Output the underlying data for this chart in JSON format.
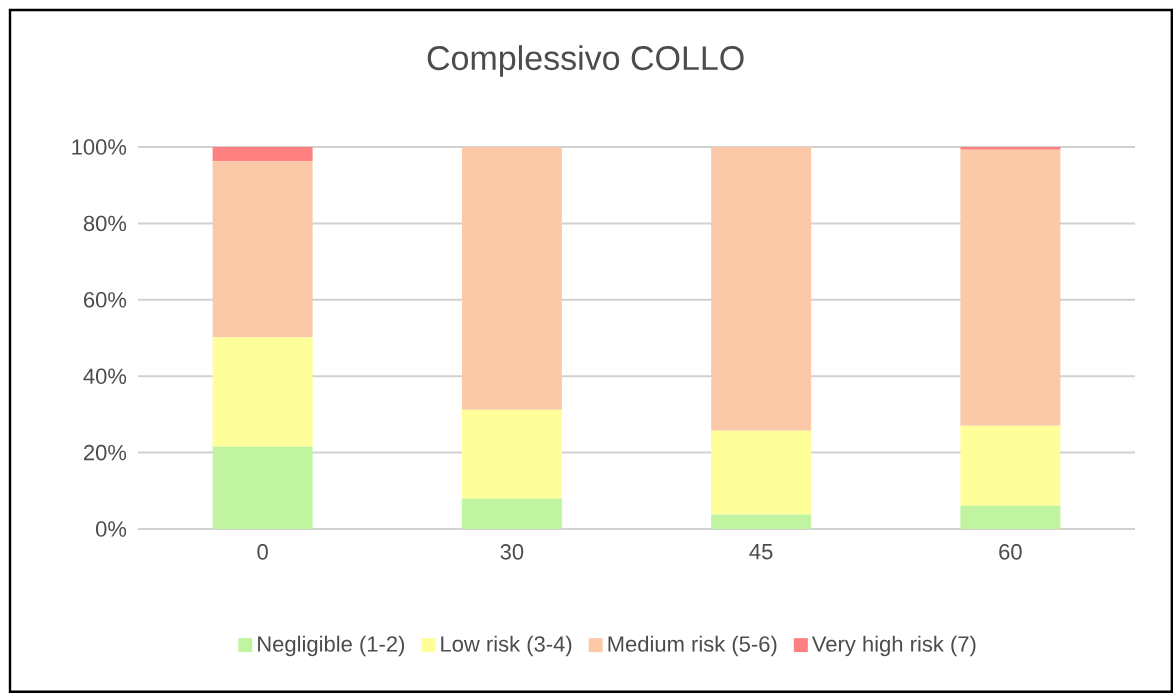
{
  "chart_data": {
    "type": "bar",
    "title": "Complessivo COLLO",
    "stacked": true,
    "categories": [
      "0",
      "30",
      "45",
      "60"
    ],
    "series": [
      {
        "name": "Negligible (1-2)",
        "color": "#c0f4a0",
        "values": [
          21.5,
          7.9,
          3.8,
          6.1
        ]
      },
      {
        "name": "Low risk (3-4)",
        "color": "#fefe9a",
        "values": [
          28.7,
          23.3,
          21.9,
          20.9
        ]
      },
      {
        "name": "Medium risk (5-6)",
        "color": "#fbc9a8",
        "values": [
          46.1,
          68.8,
          74.3,
          72.3
        ]
      },
      {
        "name": "Very high risk (7)",
        "color": "#ff8080",
        "values": [
          3.7,
          0,
          0,
          0.7
        ]
      }
    ],
    "ylim": [
      0,
      100
    ],
    "yticks": [
      {
        "value": 0,
        "label": "0%"
      },
      {
        "value": 20,
        "label": "20%"
      },
      {
        "value": 40,
        "label": "40%"
      },
      {
        "value": 60,
        "label": "60%"
      },
      {
        "value": 80,
        "label": "80%"
      },
      {
        "value": 100,
        "label": "100%"
      }
    ],
    "grid": "y",
    "legend": "bottom"
  }
}
